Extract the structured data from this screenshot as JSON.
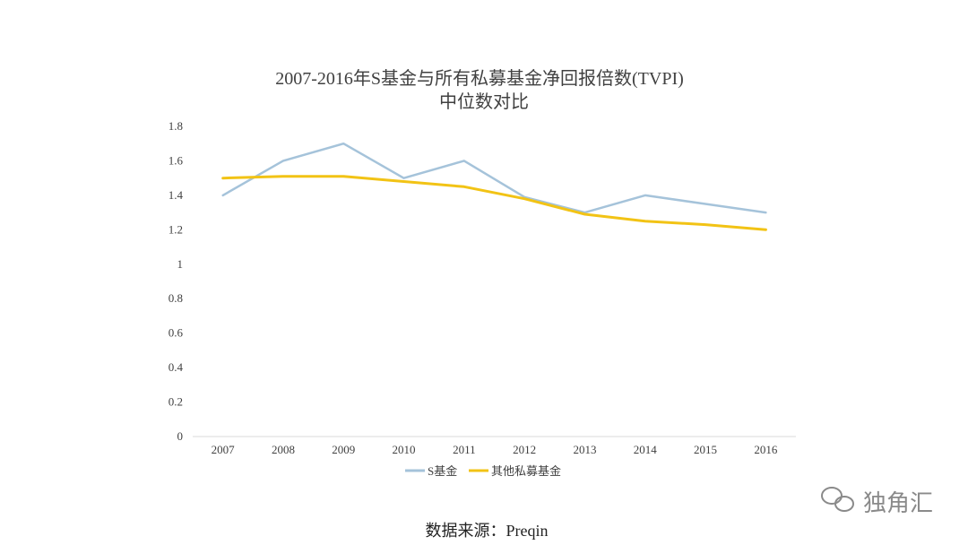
{
  "chart_data": {
    "type": "line",
    "title": "2007-2016年S基金与所有私募基金净回报倍数(TVPI)",
    "subtitle": "中位数对比",
    "xlabel": "",
    "ylabel": "",
    "categories": [
      "2007",
      "2008",
      "2009",
      "2010",
      "2011",
      "2012",
      "2013",
      "2014",
      "2015",
      "2016"
    ],
    "ylim": [
      0,
      1.8
    ],
    "yticks": [
      "0",
      "0.2",
      "0.4",
      "0.6",
      "0.8",
      "1",
      "1.2",
      "1.4",
      "1.6",
      "1.8"
    ],
    "grid": false,
    "legend_position": "bottom",
    "series": [
      {
        "name": "S基金",
        "color": "#a5c3da",
        "values": [
          1.4,
          1.6,
          1.7,
          1.5,
          1.6,
          1.39,
          1.3,
          1.4,
          1.35,
          1.3
        ]
      },
      {
        "name": "其他私募基金",
        "color": "#f2c315",
        "values": [
          1.5,
          1.51,
          1.51,
          1.48,
          1.45,
          1.38,
          1.29,
          1.25,
          1.23,
          1.2
        ]
      }
    ]
  },
  "footer": {
    "source": "数据来源：Preqin"
  },
  "watermark": {
    "text": "独角汇",
    "icon": "wechat-icon"
  }
}
